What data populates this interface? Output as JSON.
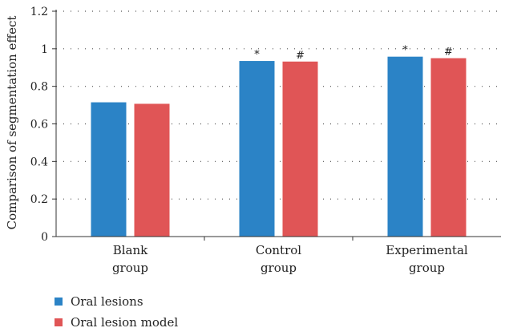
{
  "chart_data": {
    "type": "bar",
    "categories": [
      "Blank\ngroup",
      "Control\ngroup",
      "Experimental\ngroup"
    ],
    "series": [
      {
        "name": "Oral lesions",
        "color": "#2b83c6",
        "values": [
          0.715,
          0.935,
          0.958
        ],
        "annotations": [
          "",
          "*",
          "*"
        ]
      },
      {
        "name": "Oral lesion model",
        "color": "#e05556",
        "values": [
          0.707,
          0.932,
          0.95
        ],
        "annotations": [
          "",
          "#",
          "#"
        ]
      }
    ],
    "ylabel": "Comparison of segmentation effect",
    "ylim": [
      0,
      1.2
    ],
    "yticks": [
      "0",
      "0.2",
      "0.4",
      "0.6",
      "0.8",
      "1",
      "1.2"
    ],
    "grid": "dotted-horizontal",
    "legend_position": "bottom-left"
  }
}
